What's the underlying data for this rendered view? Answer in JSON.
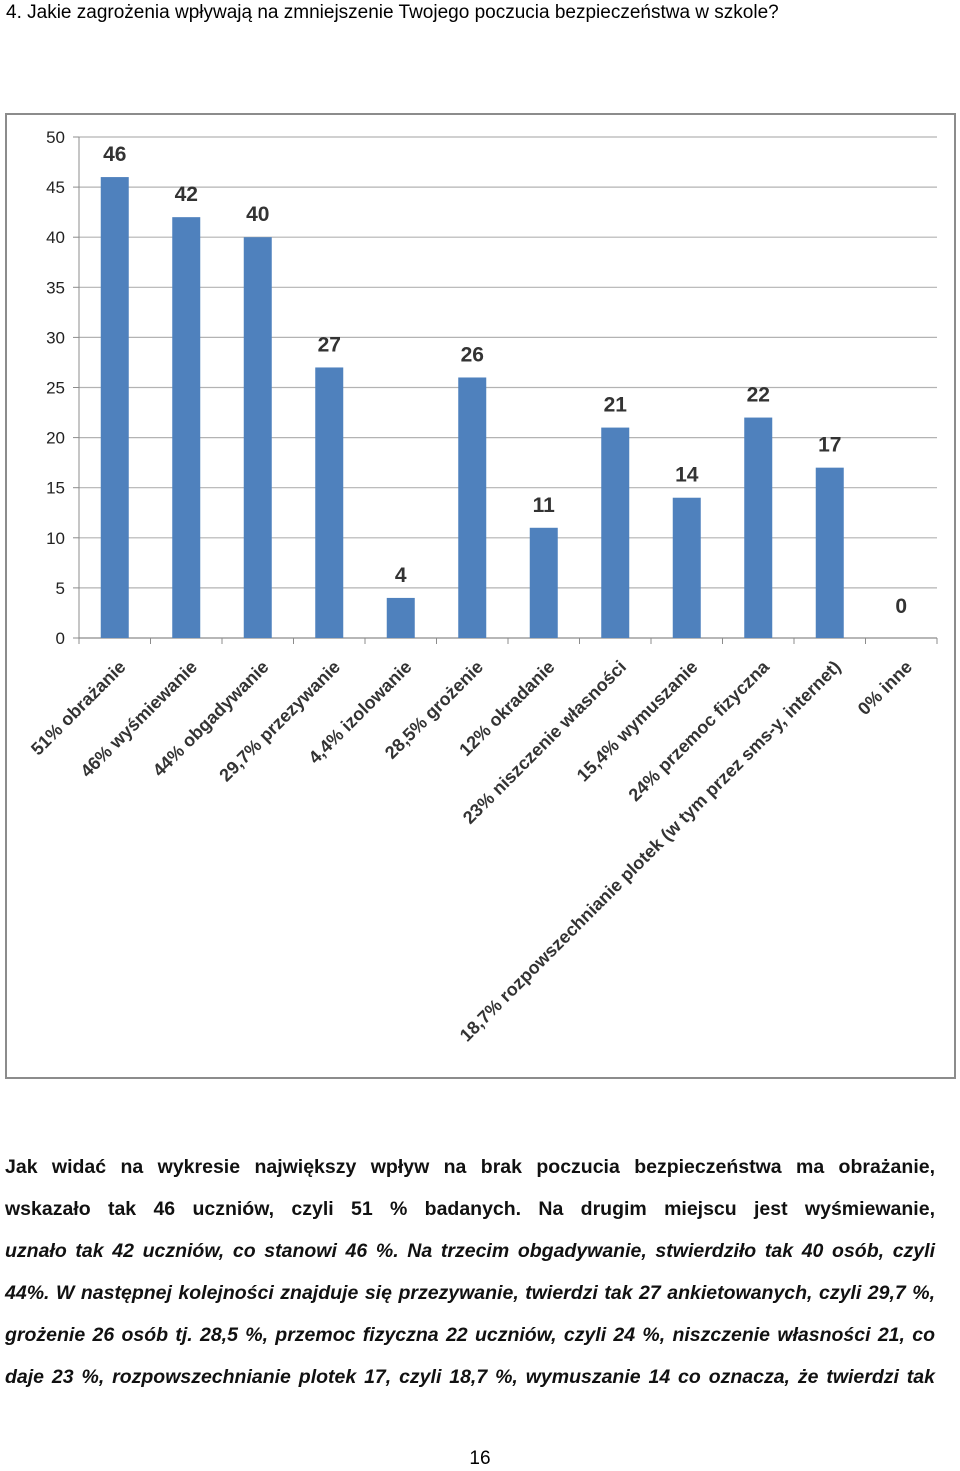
{
  "question": "4. Jakie zagrożenia wpływają na zmniejszenie Twojego poczucia bezpieczeństwa w szkole?",
  "chart_data": {
    "type": "bar",
    "categories": [
      "51% obrażanie",
      "46% wyśmiewanie",
      "44% obgadywanie",
      "29,7% przezywanie",
      "4,4% izolowanie",
      "28,5% grożenie",
      "12% okradanie",
      "23% niszczenie własności",
      "15,4% wymuszanie",
      "24% przemoc fizyczna",
      "18,7% rozpowszechnianie plotek (w tym przez sms-y, internet)",
      "0% inne"
    ],
    "values": [
      46,
      42,
      40,
      27,
      4,
      26,
      11,
      21,
      14,
      22,
      17,
      0
    ],
    "value_labels": [
      "46",
      "42",
      "40",
      "27",
      "4",
      "26",
      "11",
      "21",
      "14",
      "22",
      "17",
      "0"
    ],
    "ylim": [
      0,
      50
    ],
    "yticks": [
      "0",
      "5",
      "10",
      "15",
      "20",
      "25",
      "30",
      "35",
      "40",
      "45",
      "50"
    ],
    "grid": true,
    "legend": "none",
    "bar_color": "#4f81bd",
    "title": "",
    "xlabel": "",
    "ylabel": ""
  },
  "paragraph": {
    "line1": "Jak widać na wykresie największy wpływ na brak poczucia bezpieczeństwa ma obrażanie,",
    "line2": "wskazało tak 46 uczniów, czyli 51 % badanych. Na drugim miejscu jest wyśmiewanie,",
    "line3": "uznało tak 42 uczniów, co stanowi 46 %. Na trzecim  obgadywanie, stwierdziło tak 40 osób, czyli",
    "line4": "44%. W następnej kolejności znajduje się przezywanie, twierdzi tak 27 ankietowanych, czyli 29,7 %,",
    "line5": "grożenie 26 osób tj. 28,5 %, przemoc fizyczna 22 uczniów, czyli 24 %, niszczenie własności 21, co",
    "line6": "daje 23 %, rozpowszechnianie plotek 17, czyli 18,7 %, wymuszanie 14 co oznacza, że twierdzi tak"
  },
  "page_number": "16"
}
